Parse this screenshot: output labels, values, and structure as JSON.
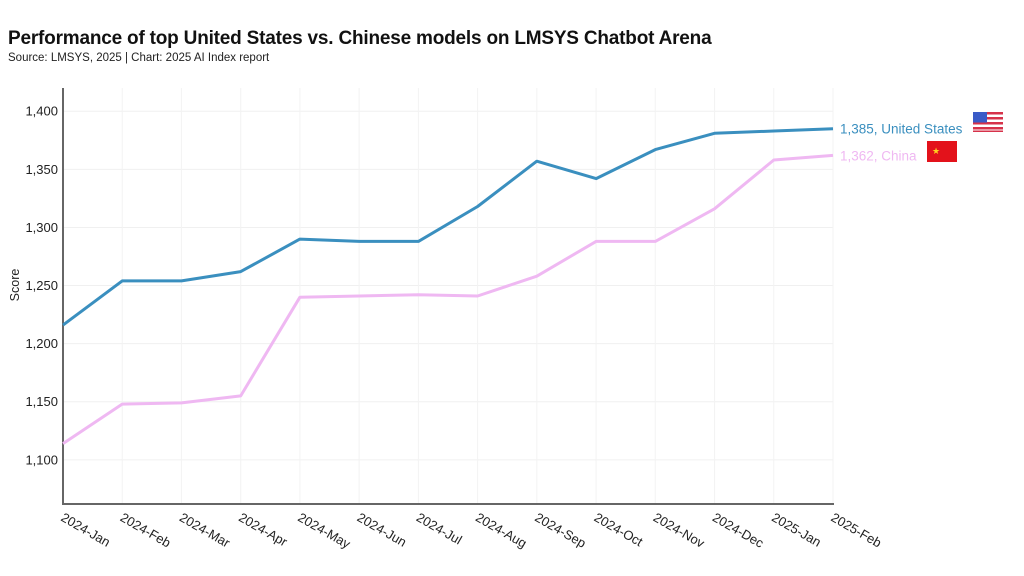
{
  "chart_data": {
    "type": "line",
    "title": "Performance of top United States vs. Chinese models on LMSYS Chatbot Arena",
    "subtitle": "Source: LMSYS, 2025 | Chart: 2025 AI Index report",
    "xlabel": "",
    "ylabel": "Score",
    "ylim": [
      1062,
      1420
    ],
    "yticks": [
      1100,
      1150,
      1200,
      1250,
      1300,
      1350,
      1400
    ],
    "ytick_labels": [
      "1,100",
      "1,150",
      "1,200",
      "1,250",
      "1,300",
      "1,350",
      "1,400"
    ],
    "grid": true,
    "categories": [
      "2024-Jan",
      "2024-Feb",
      "2024-Mar",
      "2024-Apr",
      "2024-May",
      "2024-Jun",
      "2024-Jul",
      "2024-Aug",
      "2024-Sep",
      "2024-Oct",
      "2024-Nov",
      "2024-Dec",
      "2025-Jan",
      "2025-Feb"
    ],
    "series": [
      {
        "name": "United States",
        "color": "#3a8fbf",
        "values": [
          1216,
          1254,
          1254,
          1262,
          1290,
          1288,
          1288,
          1318,
          1357,
          1342,
          1367,
          1381,
          1383,
          1385
        ],
        "end_label": "1,385, United States",
        "flag": "us-flag-icon"
      },
      {
        "name": "China",
        "color": "#efb8f2",
        "values": [
          1114,
          1148,
          1149,
          1155,
          1240,
          1241,
          1242,
          1241,
          1258,
          1288,
          1288,
          1316,
          1358,
          1362
        ],
        "end_label": "1,362, China",
        "flag": "china-flag-icon"
      }
    ]
  }
}
